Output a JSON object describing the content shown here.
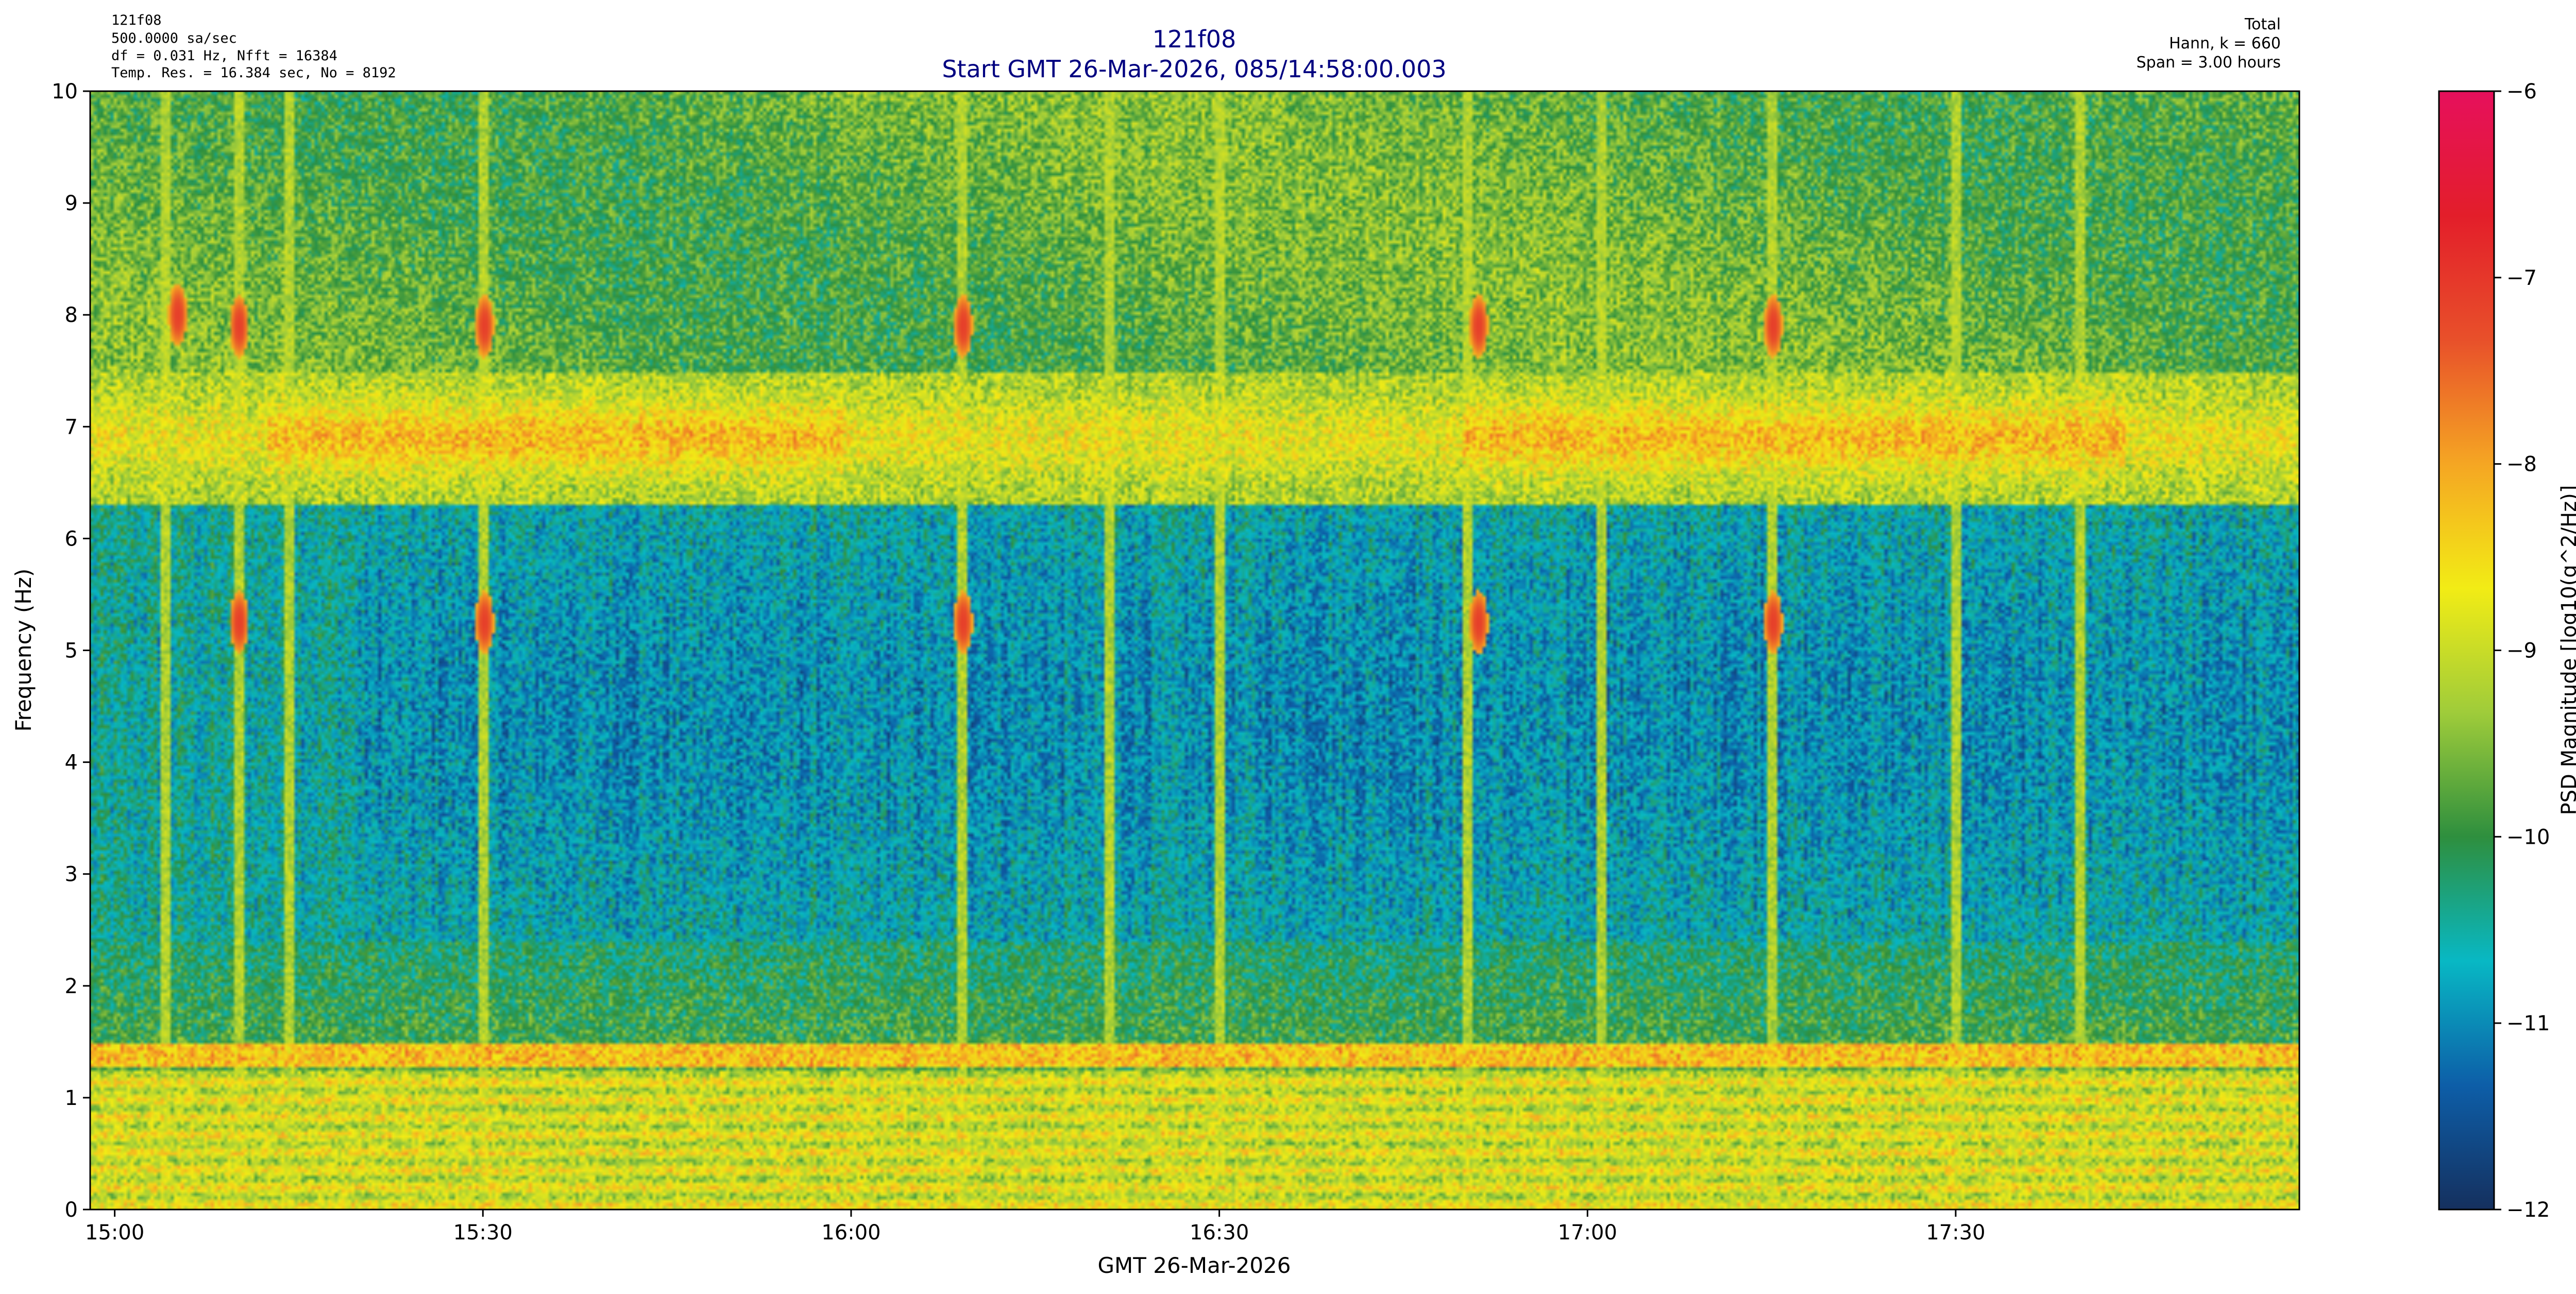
{
  "chart_data": {
    "type": "heatmap",
    "title": "121f08",
    "subtitle": "Start GMT 26-Mar-2026, 085/14:58:00.003",
    "header_left": [
      "121f08",
      "500.0000 sa/sec",
      "df = 0.031 Hz,  Nfft = 16384",
      "Temp. Res. = 16.384 sec, No = 8192"
    ],
    "header_right": [
      "Total",
      "Hann, k = 660",
      "Span = 3.00 hours"
    ],
    "xlabel": "GMT 26-Mar-2026",
    "ylabel": "Frequency (Hz)",
    "x_range": [
      "14:58",
      "17:58"
    ],
    "x_ticks": [
      "15:00",
      "15:30",
      "16:00",
      "16:30",
      "17:00",
      "17:30"
    ],
    "ylim": [
      0,
      10
    ],
    "y_ticks": [
      "0",
      "1",
      "2",
      "3",
      "4",
      "5",
      "6",
      "7",
      "8",
      "9",
      "10"
    ],
    "colorbar": {
      "label": "PSD Magnitude [log10(g^2/Hz)]",
      "range": [
        -12,
        -6
      ],
      "ticks": [
        "−12",
        "−11",
        "−10",
        "−9",
        "−8",
        "−7",
        "−6"
      ],
      "colormap": [
        "#15305e",
        "#0d5ea8",
        "#08b8c4",
        "#2e8f3e",
        "#9fcc3a",
        "#f2ec15",
        "#f5a623",
        "#e8502a",
        "#e31e2a",
        "#e6105c"
      ]
    },
    "features": {
      "horizontal_bands_hz": [
        {
          "freq": 7.0,
          "level": -8.3,
          "note": "broad band 6.6–7.2 Hz"
        },
        {
          "freq": 1.4,
          "level": -7.9,
          "note": "persistent narrow line"
        },
        {
          "freq": 0.5,
          "level": -8.5,
          "note": "strong low-frequency region 0–1.2 Hz"
        }
      ],
      "bursts": [
        {
          "time": "15:05",
          "freq": 8.0
        },
        {
          "time": "15:10",
          "freq": 7.9
        },
        {
          "time": "15:30",
          "freq": 7.9
        },
        {
          "time": "16:09",
          "freq": 7.9
        },
        {
          "time": "16:51",
          "freq": 7.9
        },
        {
          "time": "17:15",
          "freq": 7.9
        },
        {
          "time": "15:10",
          "freq": 5.25
        },
        {
          "time": "15:30",
          "freq": 5.25
        },
        {
          "time": "16:09",
          "freq": 5.25
        },
        {
          "time": "16:51",
          "freq": 5.25
        },
        {
          "time": "17:15",
          "freq": 5.25
        }
      ],
      "vertical_streaks": [
        "15:04",
        "15:10",
        "15:14",
        "15:30",
        "16:09",
        "16:21",
        "16:30",
        "16:50",
        "17:01",
        "17:15",
        "17:30",
        "17:40"
      ]
    }
  }
}
